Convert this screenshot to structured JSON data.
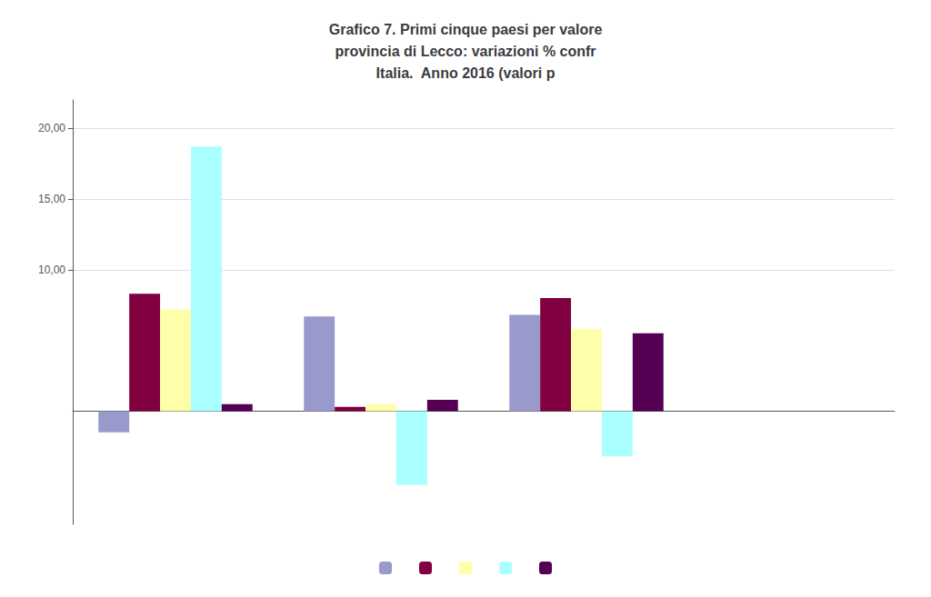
{
  "chart_data": {
    "type": "bar",
    "title": "Grafico 7. Primi cinque paesi per valore\nprovincia di Lecco: variazioni % confr\nItalia.  Anno 2016 (valori p",
    "categories": [
      null,
      null,
      null,
      null
    ],
    "series": [
      {
        "color": "#9999cc",
        "values": [
          -1.5,
          6.7,
          6.8,
          0.0
        ]
      },
      {
        "color": "#800040",
        "values": [
          8.3,
          0.3,
          8.0,
          0.0
        ]
      },
      {
        "color": "#ffffaa",
        "values": [
          7.2,
          0.5,
          5.8,
          0.0
        ]
      },
      {
        "color": "#aaffff",
        "values": [
          18.7,
          -5.2,
          -3.2,
          0.0
        ]
      },
      {
        "color": "#550055",
        "values": [
          0.5,
          0.8,
          5.5,
          0.0
        ]
      }
    ],
    "ylim": [
      -8,
      22
    ],
    "yticks": [
      {
        "value": 20,
        "label": "20,00"
      },
      {
        "value": 15,
        "label": "15,00"
      },
      {
        "value": 10,
        "label": "10,00"
      }
    ],
    "grid": true,
    "legend": "bottom"
  }
}
